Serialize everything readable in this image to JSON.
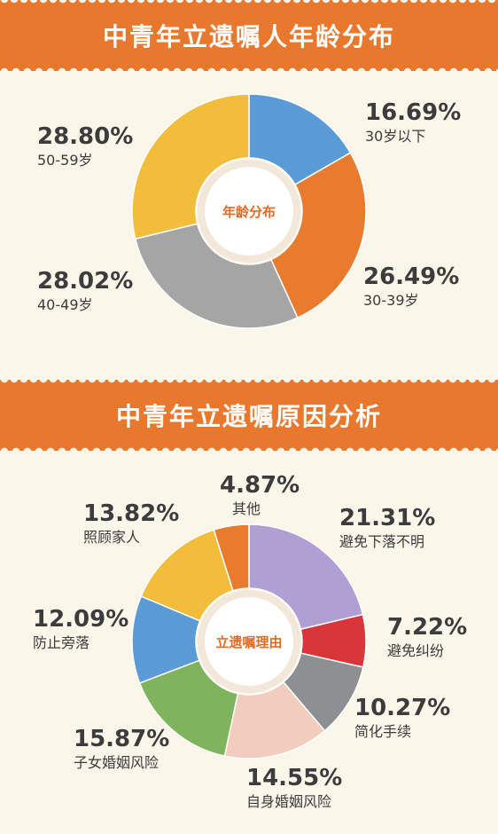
{
  "colors": {
    "background": "#fbf6ea",
    "banner": "#e9782f",
    "center_text": "#e26a22",
    "label_text": "#3c3c3c"
  },
  "chart_data": [
    {
      "type": "pie",
      "title": "中青年立遗嘱人年龄分布",
      "center_label": "年龄分布",
      "slices": [
        {
          "category": "30岁以下",
          "value": 16.69,
          "label": "16.69%",
          "color": "#5b9bd5"
        },
        {
          "category": "30-39岁",
          "value": 26.49,
          "label": "26.49%",
          "color": "#e87b2e"
        },
        {
          "category": "40-49岁",
          "value": 28.02,
          "label": "28.02%",
          "color": "#a5a5a5"
        },
        {
          "category": "50-59岁",
          "value": 28.8,
          "label": "28.80%",
          "color": "#f3bd3c"
        }
      ]
    },
    {
      "type": "pie",
      "title": "中青年立遗嘱原因分析",
      "center_label": "立遗嘱理由",
      "slices": [
        {
          "category": "避免下落不明",
          "value": 21.31,
          "label": "21.31%",
          "color": "#b09fd3"
        },
        {
          "category": "避免纠纷",
          "value": 7.22,
          "label": "7.22%",
          "color": "#d8363a"
        },
        {
          "category": "简化手续",
          "value": 10.27,
          "label": "10.27%",
          "color": "#8d8f92"
        },
        {
          "category": "自身婚姻风险",
          "value": 14.55,
          "label": "14.55%",
          "color": "#f2cdbd"
        },
        {
          "category": "子女婚姻风险",
          "value": 15.87,
          "label": "15.87%",
          "color": "#7fb35c"
        },
        {
          "category": "防止旁落",
          "value": 12.09,
          "label": "12.09%",
          "color": "#5b9bd5"
        },
        {
          "category": "照顾家人",
          "value": 13.82,
          "label": "13.82%",
          "color": "#f3bd3c"
        },
        {
          "category": "其他",
          "value": 4.87,
          "label": "4.87%",
          "color": "#e87b2e"
        }
      ]
    }
  ]
}
